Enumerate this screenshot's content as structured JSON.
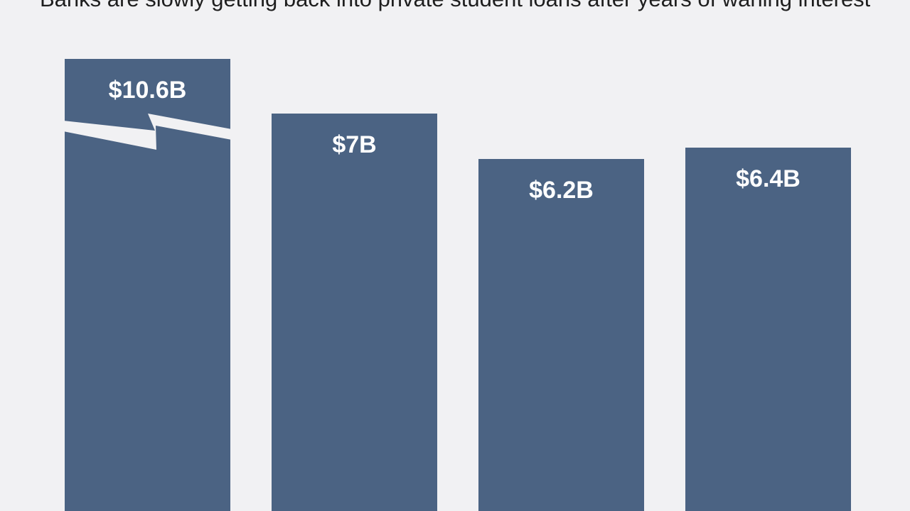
{
  "chart_data": {
    "type": "bar",
    "title": "Banks are slowly getting back into private student loans after years of waning interest",
    "categories": [
      "",
      "",
      "",
      ""
    ],
    "values": [
      10.6,
      7,
      6.2,
      6.4
    ],
    "value_labels": [
      "$10.6B",
      "$7B",
      "$6.2B",
      "$6.4B"
    ],
    "axis_break_on_first_bar": true,
    "unit": "$B",
    "grid": false,
    "legend": "none",
    "bar_color": "#4b6383",
    "background_color": "#f1f1f3"
  }
}
